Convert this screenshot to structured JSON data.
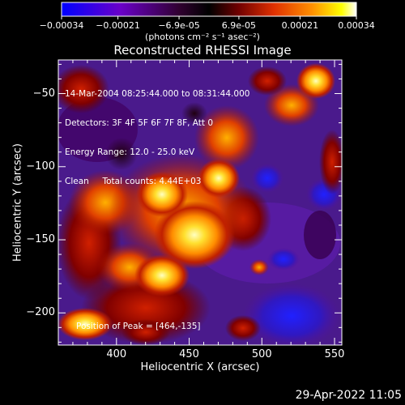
{
  "colorbar": {
    "tick_labels": [
      "-0.00034",
      "-0.00021",
      "-6.9e-05",
      "6.9e-05",
      "0.00021",
      "0.00034"
    ],
    "unit_label": "(photons cm⁻² s⁻¹ asec⁻²)",
    "colors": [
      "#0000ff",
      "#6a00c8",
      "#300030",
      "#000000",
      "#700000",
      "#e03000",
      "#ff9000",
      "#ffff00",
      "#ffffff"
    ]
  },
  "chart_data": {
    "type": "heatmap",
    "title": "Reconstructed RHESSI Image",
    "xlabel": "Heliocentric X (arcsec)",
    "ylabel": "Heliocentric Y (arcsec)",
    "xlim": [
      360,
      555
    ],
    "ylim": [
      -222,
      -27
    ],
    "x_ticks": [
      400,
      450,
      500,
      550
    ],
    "y_ticks": [
      -50,
      -100,
      -150,
      -200
    ],
    "zlim": [
      -0.00034,
      0.00034
    ],
    "peak": [
      464,
      -135
    ],
    "annotations": [
      "14-Mar-2004 08:25:44.000 to 08:31:44.000",
      "Detectors: 3F 4F 5F 6F 7F 8F, Att 0",
      "Energy Range: 12.0 - 25.0 keV",
      "Clean     Total counts: 4.44E+03"
    ],
    "peak_label": "Position of Peak = [464,-135]"
  },
  "footer": {
    "timestamp": "29-Apr-2022 11:05"
  }
}
